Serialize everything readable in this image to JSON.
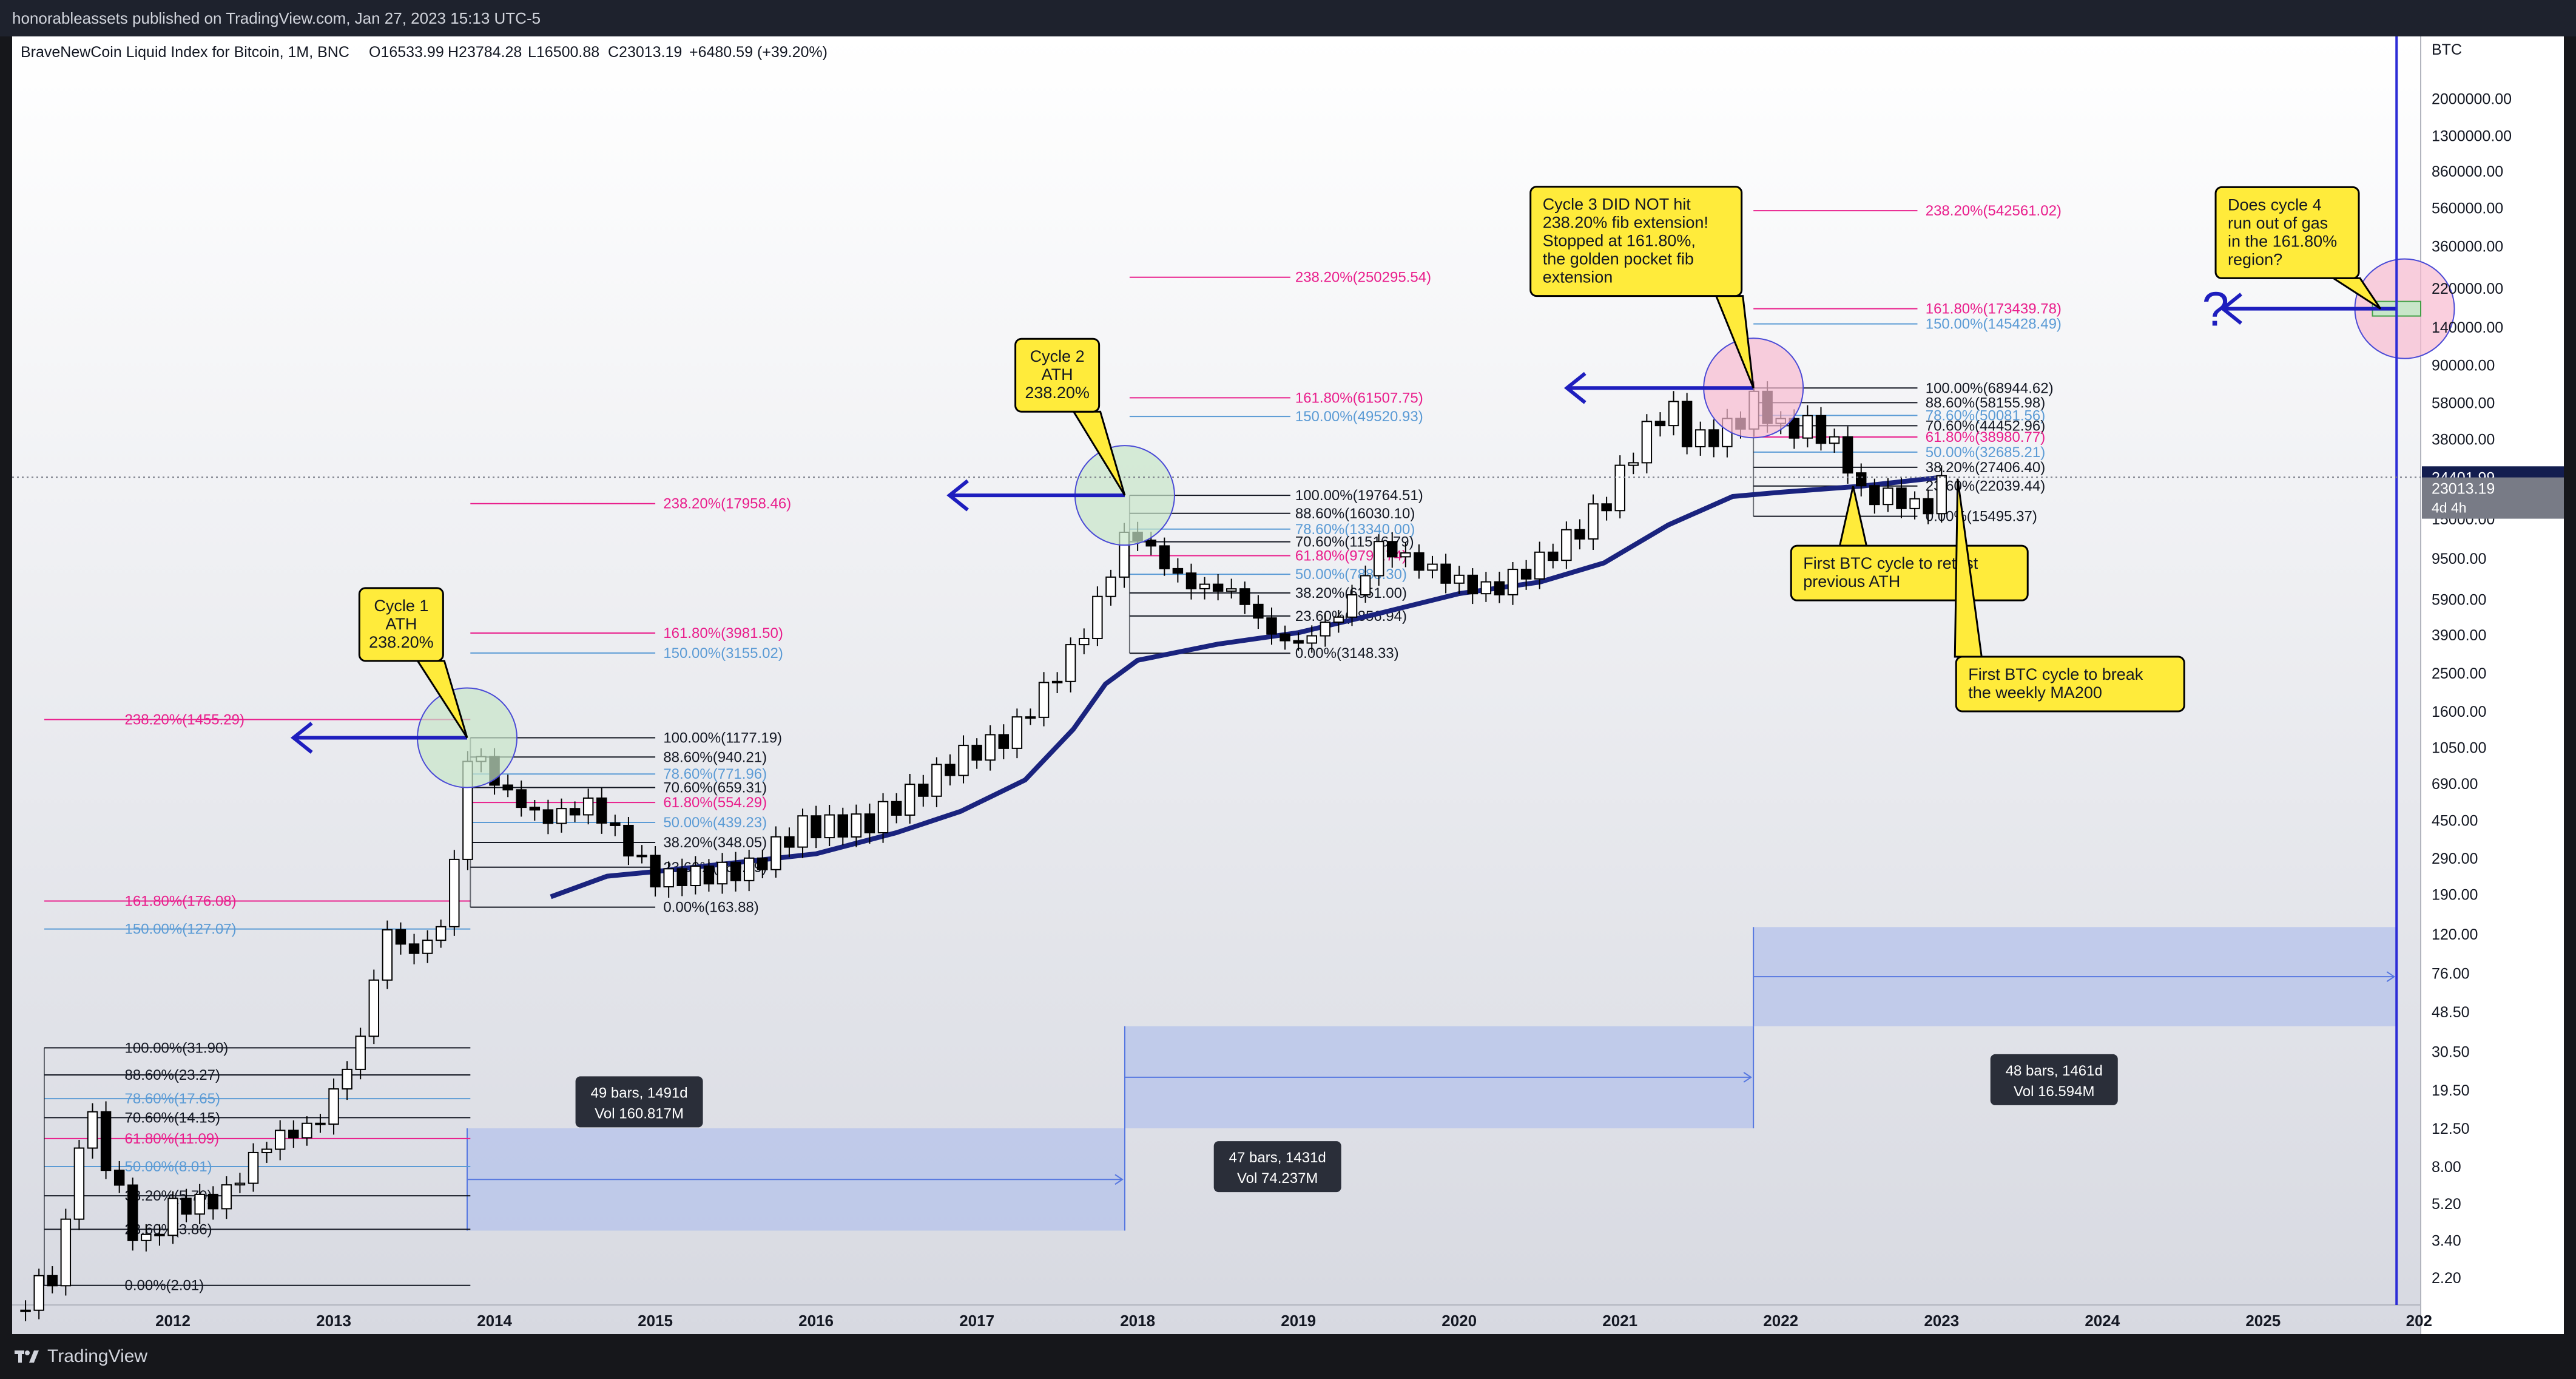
{
  "header": {
    "publish_info": "honorableassets published on TradingView.com, Jan 27, 2023 15:13 UTC-5",
    "symbol_line": "BraveNewCoin Liquid Index for Bitcoin, 1M, BNC",
    "open": "O16533.99",
    "high": "H23784.28",
    "low": "L16500.88",
    "close": "C23013.19",
    "change": "+6480.59 (+39.20%)"
  },
  "footer": {
    "brand": "TradingView"
  },
  "colors": {
    "candle_up": "#ffffff",
    "candle_down": "#000000",
    "ma200": "#1a237e",
    "fib_main": "#131722",
    "fib_pink": "#e91e8c",
    "fib_blue": "#5b9bd5",
    "arrow": "#1e1ebe",
    "box_fill": "#b7c4ea",
    "note_fill": "#ffeb3b",
    "price_tag": "#131d4f",
    "now_line": "#2c2cd6"
  },
  "chart_data": {
    "type": "candlestick",
    "scale": "log",
    "currency_label": "BTC",
    "x_range": [
      2011.0,
      2025.98
    ],
    "ylim": [
      1.6,
      2700000
    ],
    "y_ticks": [
      {
        "v": 2000000,
        "label": "2000000.00"
      },
      {
        "v": 1300000,
        "label": "1300000.00"
      },
      {
        "v": 860000,
        "label": "860000.00"
      },
      {
        "v": 560000,
        "label": "560000.00"
      },
      {
        "v": 360000,
        "label": "360000.00"
      },
      {
        "v": 220000,
        "label": "220000.00"
      },
      {
        "v": 140000,
        "label": "140000.00"
      },
      {
        "v": 90000,
        "label": "90000.00"
      },
      {
        "v": 58000,
        "label": "58000.00"
      },
      {
        "v": 38000,
        "label": "38000.00"
      },
      {
        "v": 15000,
        "label": "15000.00"
      },
      {
        "v": 9500,
        "label": "9500.00"
      },
      {
        "v": 5900,
        "label": "5900.00"
      },
      {
        "v": 3900,
        "label": "3900.00"
      },
      {
        "v": 2500,
        "label": "2500.00"
      },
      {
        "v": 1600,
        "label": "1600.00"
      },
      {
        "v": 1050,
        "label": "1050.00"
      },
      {
        "v": 690,
        "label": "690.00"
      },
      {
        "v": 450,
        "label": "450.00"
      },
      {
        "v": 290,
        "label": "290.00"
      },
      {
        "v": 190,
        "label": "190.00"
      },
      {
        "v": 120,
        "label": "120.00"
      },
      {
        "v": 76,
        "label": "76.00"
      },
      {
        "v": 48.5,
        "label": "48.50"
      },
      {
        "v": 30.5,
        "label": "30.50"
      },
      {
        "v": 19.5,
        "label": "19.50"
      },
      {
        "v": 12.5,
        "label": "12.50"
      },
      {
        "v": 8,
        "label": "8.00"
      },
      {
        "v": 5.2,
        "label": "5.20"
      },
      {
        "v": 3.4,
        "label": "3.40"
      },
      {
        "v": 2.2,
        "label": "2.20"
      }
    ],
    "x_ticks": [
      {
        "t": 2012,
        "label": "2012"
      },
      {
        "t": 2013,
        "label": "2013"
      },
      {
        "t": 2014,
        "label": "2014"
      },
      {
        "t": 2015,
        "label": "2015"
      },
      {
        "t": 2016,
        "label": "2016"
      },
      {
        "t": 2017,
        "label": "2017"
      },
      {
        "t": 2018,
        "label": "2018"
      },
      {
        "t": 2019,
        "label": "2019"
      },
      {
        "t": 2020,
        "label": "2020"
      },
      {
        "t": 2021,
        "label": "2021"
      },
      {
        "t": 2022,
        "label": "2022"
      },
      {
        "t": 2023,
        "label": "2023"
      },
      {
        "t": 2024,
        "label": "2024"
      },
      {
        "t": 2025,
        "label": "2025"
      },
      {
        "t": 2025.97,
        "label": "202"
      }
    ],
    "price_markers": [
      {
        "v": 24401.99,
        "label": "24401.99",
        "style": "dark"
      },
      {
        "v": 23013.19,
        "label": "23013.19",
        "style": "grey"
      }
    ],
    "countdown": "4d 4h",
    "ohlc_anchors": [
      [
        2011.0,
        1.5
      ],
      [
        2011.3,
        2.5
      ],
      [
        2011.45,
        17.5
      ],
      [
        2011.6,
        8
      ],
      [
        2011.8,
        3
      ],
      [
        2012.0,
        5
      ],
      [
        2012.3,
        5.5
      ],
      [
        2012.6,
        11
      ],
      [
        2012.9,
        13
      ],
      [
        2013.2,
        40
      ],
      [
        2013.3,
        130
      ],
      [
        2013.5,
        95
      ],
      [
        2013.7,
        140
      ],
      [
        2013.85,
        1150
      ],
      [
        2014.0,
        700
      ],
      [
        2014.3,
        450
      ],
      [
        2014.6,
        550
      ],
      [
        2014.8,
        350
      ],
      [
        2015.0,
        230
      ],
      [
        2015.3,
        240
      ],
      [
        2015.6,
        260
      ],
      [
        2015.9,
        420
      ],
      [
        2016.3,
        430
      ],
      [
        2016.6,
        620
      ],
      [
        2016.9,
        950
      ],
      [
        2017.2,
        1200
      ],
      [
        2017.5,
        2500
      ],
      [
        2017.7,
        4500
      ],
      [
        2017.95,
        14000
      ],
      [
        2018.1,
        10000
      ],
      [
        2018.3,
        7000
      ],
      [
        2018.6,
        6500
      ],
      [
        2018.85,
        3800
      ],
      [
        2019.0,
        3500
      ],
      [
        2019.3,
        5300
      ],
      [
        2019.5,
        11000
      ],
      [
        2019.8,
        8500
      ],
      [
        2020.0,
        7200
      ],
      [
        2020.2,
        6500
      ],
      [
        2020.5,
        9200
      ],
      [
        2020.75,
        13500
      ],
      [
        2020.92,
        19000
      ],
      [
        2021.1,
        35000
      ],
      [
        2021.3,
        58000
      ],
      [
        2021.45,
        36000
      ],
      [
        2021.7,
        44000
      ],
      [
        2021.85,
        61000
      ],
      [
        2022.0,
        43000
      ],
      [
        2022.2,
        45000
      ],
      [
        2022.4,
        31000
      ],
      [
        2022.5,
        20000
      ],
      [
        2022.7,
        19500
      ],
      [
        2022.9,
        16500
      ],
      [
        2023.0,
        23013
      ]
    ],
    "ma200_anchors": [
      [
        2014.35,
        185
      ],
      [
        2014.7,
        235
      ],
      [
        2015.0,
        248
      ],
      [
        2015.5,
        275
      ],
      [
        2016.0,
        305
      ],
      [
        2016.5,
        390
      ],
      [
        2016.9,
        500
      ],
      [
        2017.3,
        720
      ],
      [
        2017.6,
        1300
      ],
      [
        2017.8,
        2200
      ],
      [
        2018.0,
        2900
      ],
      [
        2018.5,
        3500
      ],
      [
        2019.0,
        4000
      ],
      [
        2019.5,
        5000
      ],
      [
        2020.0,
        6300
      ],
      [
        2020.5,
        7200
      ],
      [
        2020.9,
        9000
      ],
      [
        2021.3,
        14000
      ],
      [
        2021.7,
        19500
      ],
      [
        2022.0,
        20500
      ],
      [
        2022.5,
        22000
      ],
      [
        2023.0,
        24400
      ]
    ],
    "fib_sets": [
      {
        "x_line_start": 2011.2,
        "x_line_end": 2013.85,
        "label_x": 2011.7,
        "levels": [
          {
            "v": 31.9,
            "label": "100.00%(31.90)",
            "color": "main"
          },
          {
            "v": 23.27,
            "label": "88.60%(23.27)",
            "color": "main"
          },
          {
            "v": 17.65,
            "label": "78.60%(17.65)",
            "color": "blue"
          },
          {
            "v": 14.15,
            "label": "70.60%(14.15)",
            "color": "main"
          },
          {
            "v": 11.09,
            "label": "61.80%(11.09)",
            "color": "pink"
          },
          {
            "v": 8.01,
            "label": "50.00%(8.01)",
            "color": "blue"
          },
          {
            "v": 5.7,
            "label": "38.20%(5.70)",
            "color": "main"
          },
          {
            "v": 3.86,
            "label": "23.60%(3.86)",
            "color": "main"
          },
          {
            "v": 2.01,
            "label": "0.00%(2.01)",
            "color": "main"
          },
          {
            "v": 127.07,
            "label": "150.00%(127.07)",
            "color": "blue"
          },
          {
            "v": 176.08,
            "label": "161.80%(176.08)",
            "color": "pink"
          },
          {
            "v": 1455.29,
            "label": "238.20%(1455.29)",
            "color": "pink"
          }
        ]
      },
      {
        "x_line_start": 2013.85,
        "x_line_end": 2015.0,
        "label_x": 2015.05,
        "levels": [
          {
            "v": 1177.19,
            "label": "100.00%(1177.19)",
            "color": "main"
          },
          {
            "v": 940.21,
            "label": "88.60%(940.21)",
            "color": "main"
          },
          {
            "v": 771.96,
            "label": "78.60%(771.96)",
            "color": "blue"
          },
          {
            "v": 659.31,
            "label": "70.60%(659.31)",
            "color": "main"
          },
          {
            "v": 554.29,
            "label": "61.80%(554.29)",
            "color": "pink"
          },
          {
            "v": 439.23,
            "label": "50.00%(439.23)",
            "color": "blue"
          },
          {
            "v": 348.05,
            "label": "38.20%(348.05)",
            "color": "main"
          },
          {
            "v": 260.99,
            "label": "23.60%(260.99)",
            "color": "main"
          },
          {
            "v": 163.88,
            "label": "0.00%(163.88)",
            "color": "main"
          },
          {
            "v": 3155.02,
            "label": "150.00%(3155.02)",
            "color": "blue"
          },
          {
            "v": 3981.5,
            "label": "161.80%(3981.50)",
            "color": "pink"
          },
          {
            "v": 17958.46,
            "label": "238.20%(17958.46)",
            "color": "pink"
          }
        ]
      },
      {
        "x_line_start": 2017.95,
        "x_line_end": 2018.95,
        "label_x": 2018.98,
        "levels": [
          {
            "v": 19764.51,
            "label": "100.00%(19764.51)",
            "color": "main"
          },
          {
            "v": 16030.1,
            "label": "88.60%(16030.10)",
            "color": "main"
          },
          {
            "v": 13340,
            "label": "78.60%(13340.00)",
            "color": "blue"
          },
          {
            "v": 11516.79,
            "label": "70.60%(11516.79)",
            "color": "main"
          },
          {
            "v": 9795.74,
            "label": "61.80%(9795.74)",
            "color": "pink"
          },
          {
            "v": 7888.3,
            "label": "50.00%(7888.30)",
            "color": "blue"
          },
          {
            "v": 6351,
            "label": "38.20%(6351.00)",
            "color": "main"
          },
          {
            "v": 4856.94,
            "label": "23.60%(4856.94)",
            "color": "main"
          },
          {
            "v": 3148.33,
            "label": "0.00%(3148.33)",
            "color": "main"
          },
          {
            "v": 49520.93,
            "label": "150.00%(49520.93)",
            "color": "blue"
          },
          {
            "v": 61507.75,
            "label": "161.80%(61507.75)",
            "color": "pink"
          },
          {
            "v": 250295.54,
            "label": "238.20%(250295.54)",
            "color": "pink"
          }
        ]
      },
      {
        "x_line_start": 2021.83,
        "x_line_end": 2022.85,
        "label_x": 2022.9,
        "levels": [
          {
            "v": 68944.62,
            "label": "100.00%(68944.62)",
            "color": "main"
          },
          {
            "v": 58155.98,
            "label": "88.60%(58155.98)",
            "color": "main"
          },
          {
            "v": 50081.56,
            "label": "78.60%(50081.56)",
            "color": "blue"
          },
          {
            "v": 44452.96,
            "label": "70.60%(44452.96)",
            "color": "main"
          },
          {
            "v": 38980.77,
            "label": "61.80%(38980.77)",
            "color": "pink"
          },
          {
            "v": 32685.21,
            "label": "50.00%(32685.21)",
            "color": "blue"
          },
          {
            "v": 27406.4,
            "label": "38.20%(27406.40)",
            "color": "main"
          },
          {
            "v": 22039.44,
            "label": "23.60%(22039.44)",
            "color": "main"
          },
          {
            "v": 15495.37,
            "label": "0.00%(15495.37)",
            "color": "main"
          },
          {
            "v": 145428.49,
            "label": "150.00%(145428.49)",
            "color": "blue"
          },
          {
            "v": 173439.78,
            "label": "161.80%(173439.78)",
            "color": "pink"
          },
          {
            "v": 542561.02,
            "label": "238.20%(542561.02)",
            "color": "pink"
          }
        ]
      }
    ],
    "date_ranges": [
      {
        "x0": 2013.83,
        "x1": 2017.92,
        "y_top": 12.5,
        "y_bot": 3.8,
        "label1": "49 bars, 1491d",
        "label2": "Vol 160.817M",
        "label_t": 2014.9,
        "label_v": 17
      },
      {
        "x0": 2017.92,
        "x1": 2021.83,
        "y_top": 41,
        "y_bot": 12.5,
        "label1": "47 bars, 1431d",
        "label2": "Vol 74.237M",
        "label_t": 2018.87,
        "label_v": 8
      },
      {
        "x0": 2021.83,
        "x1": 2025.83,
        "y_top": 130,
        "y_bot": 41,
        "label1": "48 bars, 1461d",
        "label2": "Vol 16.594M",
        "label_t": 2023.7,
        "label_v": 22
      }
    ],
    "circles": [
      {
        "t": 2013.83,
        "v": 1177,
        "fill": "#c8e6c9"
      },
      {
        "t": 2017.92,
        "v": 19764,
        "fill": "#c8e6c9"
      },
      {
        "t": 2021.83,
        "v": 68944,
        "fill": "#f8bbd0"
      },
      {
        "t": 2025.88,
        "v": 173439,
        "fill": "#f8bbd0"
      }
    ],
    "arrows": [
      {
        "t0": 2013.83,
        "t1": 2012.75,
        "v": 1177
      },
      {
        "t0": 2017.92,
        "t1": 2016.83,
        "v": 19764
      },
      {
        "t0": 2021.83,
        "t1": 2020.67,
        "v": 68944
      },
      {
        "t0": 2025.83,
        "t1": 2024.75,
        "v": 173439
      }
    ],
    "question_mark": {
      "text": "?",
      "t": 2024.62,
      "v": 173439
    },
    "notes": [
      {
        "id": "note-cycle1",
        "lines": [
          "Cycle 1",
          "ATH",
          "238.20%"
        ],
        "t": 2013.42,
        "v": 4400,
        "tip_t": 2013.83,
        "tip_v": 1177
      },
      {
        "id": "note-cycle2",
        "lines": [
          "Cycle 2",
          "ATH",
          "238.20%"
        ],
        "t": 2017.5,
        "v": 80000,
        "tip_t": 2017.92,
        "tip_v": 19764
      },
      {
        "id": "note-cycle3",
        "lines": [
          "Cycle 3 DID NOT hit",
          "238.20% fib extension!",
          "Stopped at 161.80%,",
          "the golden pocket fib",
          "extension"
        ],
        "t": 2021.1,
        "v": 380000,
        "tip_t": 2021.83,
        "tip_v": 68944
      },
      {
        "id": "note-retest",
        "lines": [
          "First BTC cycle to retest",
          "previous ATH"
        ],
        "t": 2022.8,
        "v": 8000,
        "tip_t": 2022.45,
        "tip_v": 22000
      },
      {
        "id": "note-ma200",
        "lines": [
          "First BTC cycle to break",
          "the weekly MA200"
        ],
        "t": 2023.8,
        "v": 2200,
        "tip_t": 2023.1,
        "tip_v": 24000
      },
      {
        "id": "note-cycle4",
        "lines": [
          "Does cycle 4",
          "run out of gas",
          "in the 161.80%",
          "region?"
        ],
        "t": 2025.15,
        "v": 420000,
        "tip_t": 2025.73,
        "tip_v": 173439
      }
    ],
    "now_line_t": 2025.83
  }
}
